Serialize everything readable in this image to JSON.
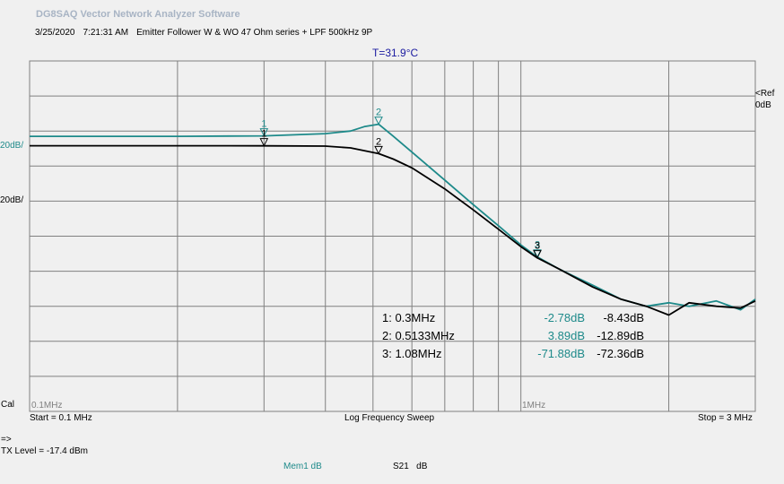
{
  "app_title": "DG8SAQ Vector Network Analyzer Software",
  "header": {
    "date": "3/25/2020",
    "time": "7:21:31 AM",
    "description": "Emitter Follower W & WO 47 Ohm series + LPF 500kHz 9P"
  },
  "temperature": "T=31.9°C",
  "scales": {
    "teal": "20dB/",
    "black": "20dB/"
  },
  "ref": {
    "line1": "<Ref",
    "line2": "0dB"
  },
  "markers": [
    {
      "label": "1: 0.3MHz",
      "teal": "-2.78dB",
      "black": "-8.43dB"
    },
    {
      "label": "2: 0.5133MHz",
      "teal": "3.89dB",
      "black": "-12.89dB"
    },
    {
      "label": "3: 1.08MHz",
      "teal": "-71.88dB",
      "black": "-72.36dB"
    }
  ],
  "footer": {
    "cal": "Cal",
    "start": "Start = 0.1 MHz",
    "sweep": "Log Frequency Sweep",
    "stop": "Stop = 3 MHz",
    "arrow": "=>",
    "tx_level": "TX Level = -17.4 dBm",
    "mem": "Mem1 dB",
    "s21": "S21",
    "s21_unit": "dB"
  },
  "colors": {
    "teal": "#1e8a8a",
    "black": "#000000",
    "grid": "#808080",
    "background": "#f0f0f0",
    "title": "#a8b4c4",
    "temperature": "#1a1aa0"
  },
  "chart_data": {
    "type": "line",
    "xscale": "log",
    "xlim": [
      0.1,
      3
    ],
    "x_tick_labels": [
      "0.1MHz",
      "1MHz"
    ],
    "ylim": [
      -160,
      40
    ],
    "y_division_db": 20,
    "reference_db": 0,
    "grid": true,
    "series": [
      {
        "color": "#1e8a8a",
        "x": [
          0.1,
          0.2,
          0.3,
          0.4,
          0.45,
          0.48,
          0.5133,
          0.55,
          0.6,
          0.7,
          0.8,
          0.9,
          1.0,
          1.08,
          1.2,
          1.4,
          1.6,
          1.8,
          2.0,
          2.2,
          2.5,
          2.8,
          3.0
        ],
        "y": [
          -3,
          -3,
          -2.78,
          -1.5,
          0,
          2.5,
          3.89,
          -3,
          -12,
          -28,
          -42,
          -54,
          -65,
          -71.88,
          -79,
          -88,
          -96,
          -100,
          -98,
          -100,
          -97,
          -102,
          -96
        ]
      },
      {
        "color": "#000000",
        "x": [
          0.1,
          0.2,
          0.3,
          0.4,
          0.45,
          0.5133,
          0.55,
          0.6,
          0.7,
          0.8,
          0.9,
          1.0,
          1.08,
          1.2,
          1.4,
          1.6,
          1.8,
          2.0,
          2.2,
          2.5,
          2.8,
          3.0
        ],
        "y": [
          -8.4,
          -8.4,
          -8.43,
          -8.6,
          -9.6,
          -12.89,
          -16,
          -21,
          -33,
          -45,
          -56,
          -66,
          -72.36,
          -79,
          -89,
          -96,
          -100,
          -105,
          -98,
          -100,
          -101,
          -97
        ]
      }
    ],
    "marker_points": [
      {
        "label": "1",
        "x": 0.3
      },
      {
        "label": "2",
        "x": 0.5133
      },
      {
        "label": "3",
        "x": 1.08
      }
    ]
  }
}
